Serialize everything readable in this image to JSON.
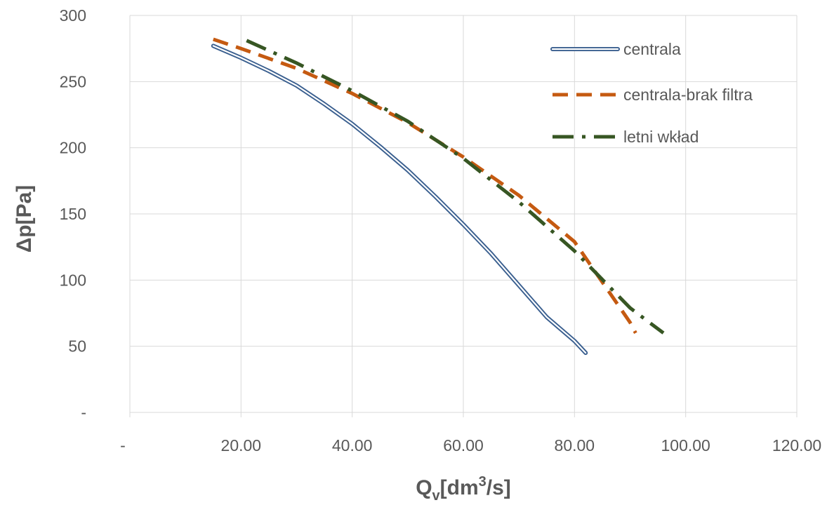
{
  "chart_data": {
    "type": "line",
    "title": "",
    "xlabel": {
      "main": "Q",
      "sub": "v",
      "rest1": "[dm",
      "sup": "3",
      "rest2": "/s]"
    },
    "ylabel": "Δp[Pa]",
    "xlim": [
      0,
      120
    ],
    "ylim": [
      0,
      300
    ],
    "x_ticks": [
      0,
      20,
      40,
      60,
      80,
      100,
      120
    ],
    "x_tick_labels": [
      "-",
      "20.00",
      "40.00",
      "60.00",
      "80.00",
      "100.00",
      "120.00"
    ],
    "y_ticks": [
      0,
      50,
      100,
      150,
      200,
      250,
      300
    ],
    "y_tick_labels": [
      "-",
      "50",
      "100",
      "150",
      "200",
      "250",
      "300"
    ],
    "grid": true,
    "legend_position": "top-right",
    "series": [
      {
        "name": "centrala",
        "style": "double-line",
        "color": "#3A5F8F",
        "x": [
          15,
          20,
          25,
          30,
          35,
          40,
          45,
          50,
          55,
          60,
          65,
          70,
          75,
          80,
          82
        ],
        "y": [
          277,
          268,
          258,
          247,
          233,
          218,
          201,
          183,
          163,
          142,
          120,
          96,
          72,
          54,
          45
        ]
      },
      {
        "name": "centrala-brak filtra",
        "style": "dashed",
        "color": "#C55A11",
        "x": [
          15,
          20,
          30,
          40,
          50,
          60,
          70,
          80,
          90,
          91
        ],
        "y": [
          282,
          275,
          260,
          241,
          219,
          193,
          164,
          129,
          68,
          60
        ]
      },
      {
        "name": "letni wkład",
        "style": "dash-dot",
        "color": "#375623",
        "x": [
          21,
          30,
          40,
          50,
          60,
          70,
          80,
          90,
          96
        ],
        "y": [
          281,
          264,
          243,
          220,
          192,
          159,
          122,
          79,
          60
        ]
      }
    ]
  }
}
